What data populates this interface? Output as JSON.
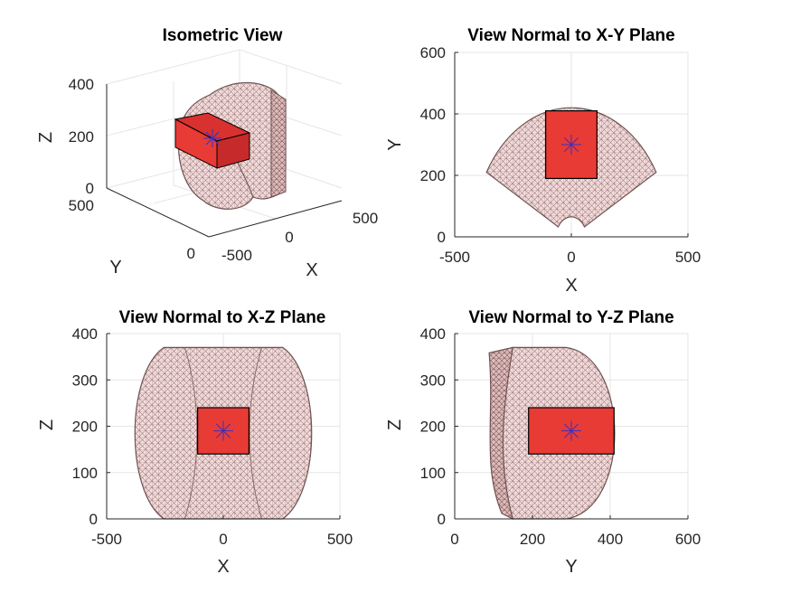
{
  "chart_data": [
    {
      "type": "3d-mesh",
      "panel": "isometric",
      "title": "Isometric View",
      "xlabel": "X",
      "ylabel": "Y",
      "zlabel": "Z",
      "xticks": [
        "-500",
        "0",
        "500"
      ],
      "yticks": [
        "0",
        "500"
      ],
      "zticks": [
        "0",
        "200",
        "400"
      ],
      "colors": {
        "mesh_edge": "#8a6a6a",
        "mesh_face": "#f4d4d4",
        "box_face": "#e83b35",
        "box_edge": "#000000",
        "marker": "#3a2fbf"
      }
    },
    {
      "type": "mesh-projection",
      "panel": "xy",
      "title": "View Normal to X-Y Plane",
      "xlabel": "X",
      "ylabel": "Y",
      "xlim": [
        -500,
        500
      ],
      "ylim": [
        0,
        600
      ],
      "xticks": [
        -500,
        0,
        500
      ],
      "yticks": [
        0,
        200,
        400,
        600
      ],
      "sector": {
        "center": [
          0,
          0
        ],
        "inner_radius": 65,
        "outer_radius": 420,
        "half_angle_deg": 60
      },
      "box": {
        "x": [
          -110,
          110
        ],
        "y": [
          190,
          410
        ]
      },
      "marker": [
        0,
        300
      ]
    },
    {
      "type": "mesh-projection",
      "panel": "xz",
      "title": "View Normal to X-Z Plane",
      "xlabel": "X",
      "ylabel": "Z",
      "xlim": [
        -500,
        500
      ],
      "ylim": [
        0,
        400
      ],
      "xticks": [
        -500,
        0,
        500
      ],
      "yticks": [
        0,
        100,
        200,
        300,
        400
      ],
      "outline": {
        "x": [
          -375,
          375
        ],
        "z": [
          0,
          370
        ]
      },
      "box": {
        "x": [
          -110,
          110
        ],
        "z": [
          140,
          240
        ]
      },
      "marker": [
        0,
        190
      ]
    },
    {
      "type": "mesh-projection",
      "panel": "yz",
      "title": "View Normal to Y-Z Plane",
      "xlabel": "Y",
      "ylabel": "Z",
      "xlim": [
        0,
        600
      ],
      "ylim": [
        0,
        400
      ],
      "xticks": [
        0,
        200,
        400,
        600
      ],
      "yticks": [
        0,
        100,
        200,
        300,
        400
      ],
      "outline": {
        "y": [
          70,
          430
        ],
        "z": [
          0,
          370
        ]
      },
      "box": {
        "y": [
          190,
          410
        ],
        "z": [
          140,
          240
        ]
      },
      "marker": [
        300,
        190
      ]
    }
  ]
}
